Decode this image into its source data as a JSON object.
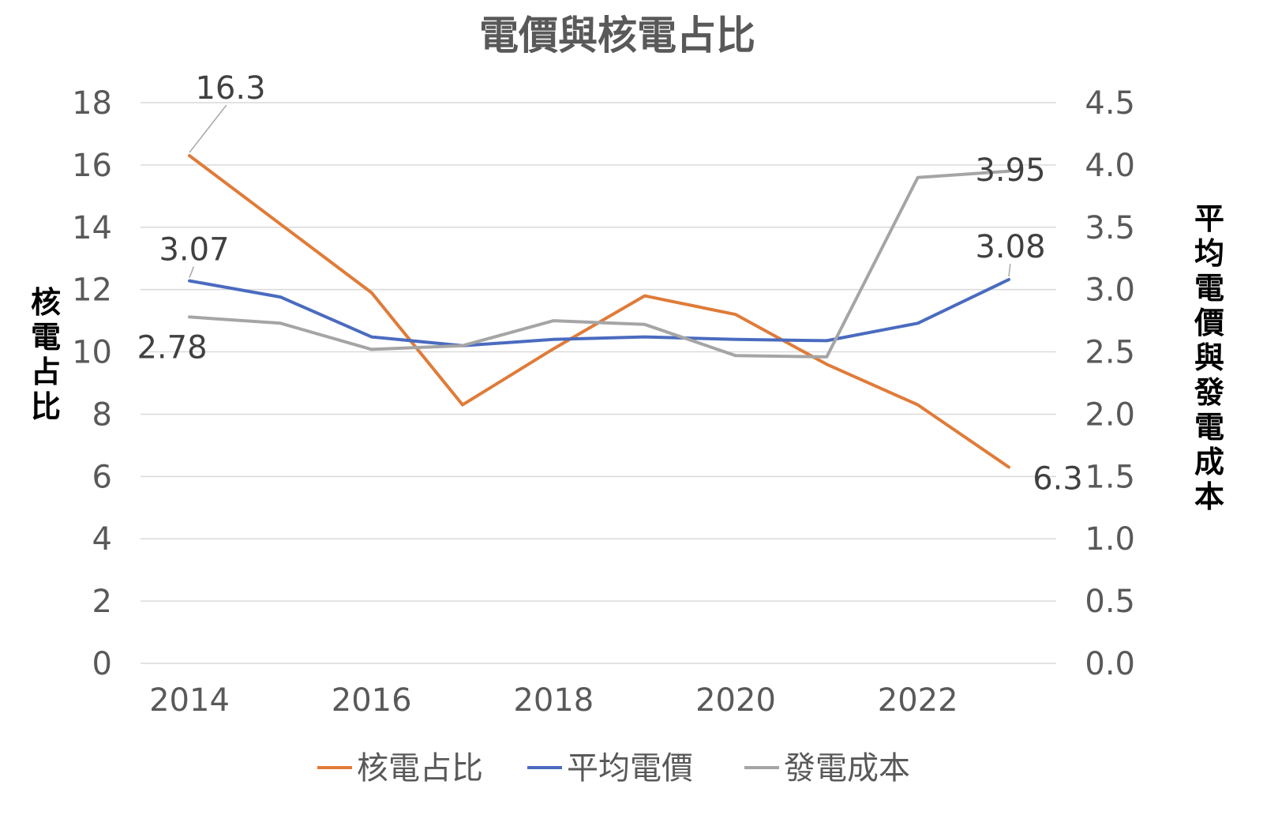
{
  "chart_data": {
    "type": "line",
    "title": "電價與核電占比",
    "x": [
      2014,
      2015,
      2016,
      2017,
      2018,
      2019,
      2020,
      2021,
      2022,
      2023
    ],
    "x_ticks": [
      "2014",
      "2016",
      "2018",
      "2020",
      "2022"
    ],
    "ylabel": "核電占比",
    "y2label": "平均電價與發電成本",
    "ylim": [
      0,
      18
    ],
    "y_ticks": [
      "0",
      "2",
      "4",
      "6",
      "8",
      "10",
      "12",
      "14",
      "16",
      "18"
    ],
    "y2lim": [
      0,
      4.5
    ],
    "y2_ticks": [
      "0.0",
      "0.5",
      "1.0",
      "1.5",
      "2.0",
      "2.5",
      "3.0",
      "3.5",
      "4.0",
      "4.5"
    ],
    "grid": true,
    "legend_position": "bottom",
    "series": [
      {
        "name": "核電占比",
        "axis": "left",
        "color": "#e07b39",
        "values": [
          16.3,
          14.1,
          11.9,
          8.3,
          10.1,
          11.8,
          11.2,
          9.6,
          8.3,
          6.3
        ],
        "labels": [
          {
            "index": 0,
            "text": "16.3"
          },
          {
            "index": 9,
            "text": "6.3"
          }
        ]
      },
      {
        "name": "平均電價",
        "axis": "right",
        "color": "#4a6bbf",
        "values": [
          3.07,
          2.94,
          2.62,
          2.55,
          2.6,
          2.62,
          2.6,
          2.59,
          2.73,
          3.08
        ],
        "labels": [
          {
            "index": 0,
            "text": "3.07"
          },
          {
            "index": 9,
            "text": "3.08"
          }
        ]
      },
      {
        "name": "發電成本",
        "axis": "right",
        "color": "#a5a5a5",
        "values": [
          2.78,
          2.73,
          2.52,
          2.55,
          2.75,
          2.72,
          2.47,
          2.46,
          3.9,
          3.95
        ],
        "labels": [
          {
            "index": 0,
            "text": "2.78"
          },
          {
            "index": 9,
            "text": "3.95"
          }
        ]
      }
    ]
  }
}
